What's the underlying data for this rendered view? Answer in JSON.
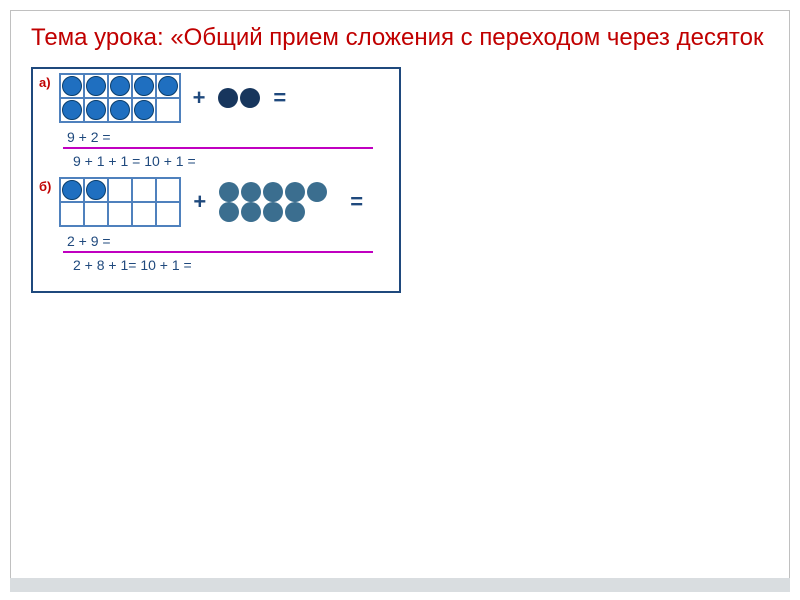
{
  "title": "Тема урока: «Общий прием сложения с переходом через десяток",
  "colors": {
    "title": "#c00000",
    "frame_border": "#1f497d",
    "cell_border": "#4f81bd",
    "divider": "#c000c0",
    "label": "#c00000",
    "dot_a_fill": "#1f6fc0",
    "dot_a_stroke": "#0a3d6b",
    "dot_a_free": "#17365d",
    "dot_b_fill": "#1f6fc0",
    "dot_b_stroke": "#0a3d6b",
    "dot_b_free": "#3b6e8f"
  },
  "box": {
    "a": {
      "label": "а)",
      "frame_fill": [
        1,
        1,
        1,
        1,
        1,
        1,
        1,
        1,
        1,
        0
      ],
      "free_dots": 2,
      "plus": "+",
      "equals": "=",
      "line1": "9 + 2 =",
      "line2_left": "9 + 1 + 1 =",
      "line2_right": "10 + 1 ="
    },
    "b": {
      "label": "б)",
      "frame_fill": [
        1,
        1,
        0,
        0,
        0,
        0,
        0,
        0,
        0,
        0
      ],
      "free_dots": 9,
      "plus": "+",
      "equals": "=",
      "line1": "2 + 9 =",
      "line2_left": "2 + 8 + 1=",
      "line2_right": "10 + 1 ="
    }
  }
}
